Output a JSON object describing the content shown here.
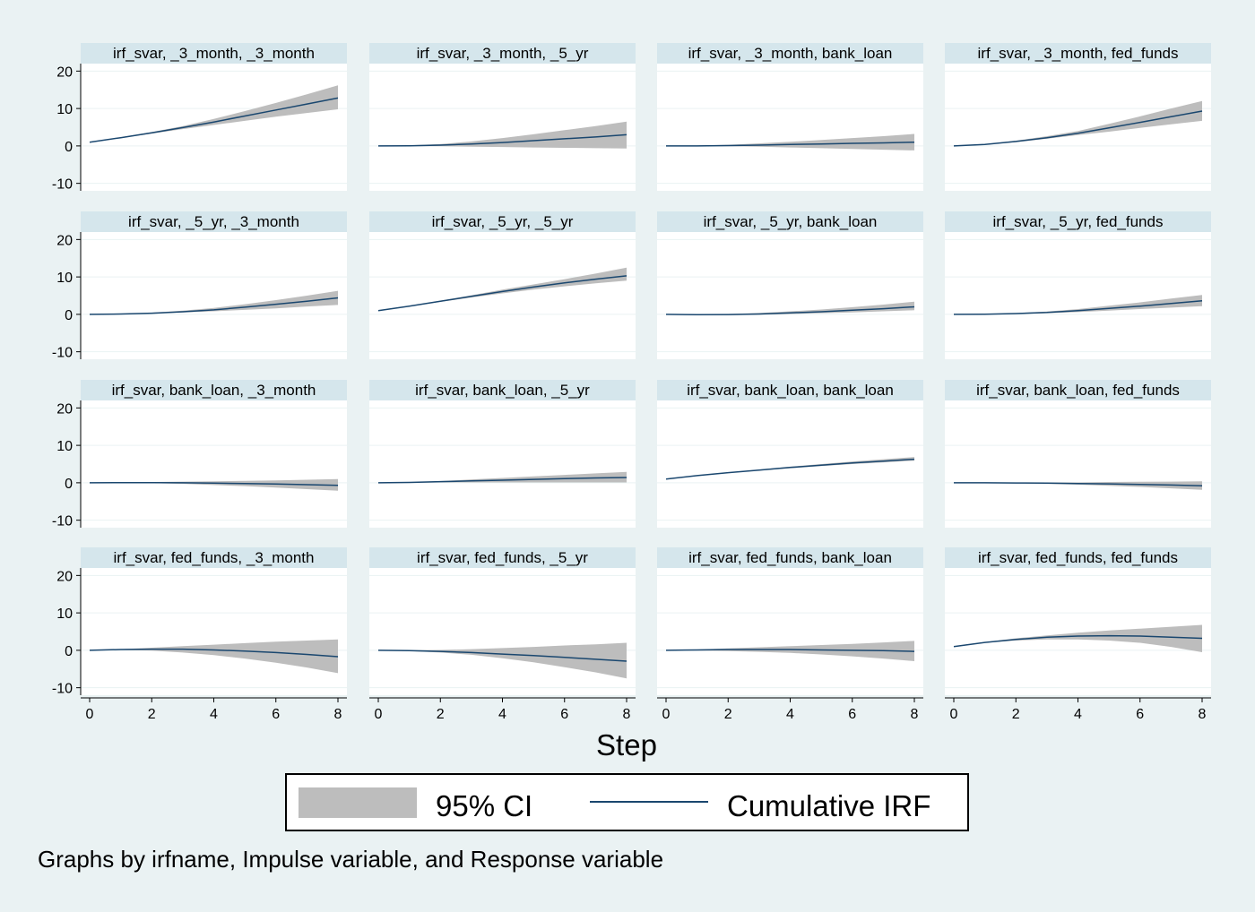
{
  "chart_data": {
    "type": "line",
    "layout": "4x4 small multiples",
    "xlabel": "Step",
    "x": [
      0,
      1,
      2,
      3,
      4,
      5,
      6,
      7,
      8
    ],
    "xticks": [
      0,
      2,
      4,
      6,
      8
    ],
    "xlim": [
      0,
      8
    ],
    "yticks": [
      20,
      10,
      0,
      -10
    ],
    "ylim": [
      -12,
      22
    ],
    "legend": {
      "placement": "bottom",
      "entries": [
        {
          "key": "ci",
          "label": "95% CI"
        },
        {
          "key": "irf",
          "label": "Cumulative IRF"
        }
      ]
    },
    "note": "Graphs by irfname, Impulse variable, and Response variable",
    "colors": {
      "ci": "#bdbdbd",
      "irf": "#1a476f",
      "strip": "#d5e6ec",
      "plot": "#ffffff",
      "background": "#eaf2f3"
    },
    "panels": [
      {
        "title": "irf_svar, _3_month, _3_month",
        "irf": [
          1.0,
          2.2,
          3.5,
          4.9,
          6.4,
          8.0,
          9.6,
          11.2,
          12.8
        ],
        "lower": [
          1.0,
          2.1,
          3.3,
          4.5,
          5.6,
          6.7,
          7.8,
          8.8,
          9.8
        ],
        "upper": [
          1.0,
          2.3,
          3.7,
          5.3,
          7.2,
          9.3,
          11.5,
          13.8,
          16.2
        ]
      },
      {
        "title": "irf_svar, _3_month, _5_yr",
        "irf": [
          0.0,
          0.05,
          0.2,
          0.5,
          0.9,
          1.4,
          1.9,
          2.4,
          3.0
        ],
        "lower": [
          0.0,
          -0.05,
          -0.1,
          -0.2,
          -0.3,
          -0.4,
          -0.5,
          -0.6,
          -0.7
        ],
        "upper": [
          0.0,
          0.15,
          0.5,
          1.2,
          2.1,
          3.1,
          4.2,
          5.3,
          6.5
        ]
      },
      {
        "title": "irf_svar, _3_month, bank_loan",
        "irf": [
          0.0,
          0.0,
          0.1,
          0.2,
          0.4,
          0.5,
          0.7,
          0.8,
          1.0
        ],
        "lower": [
          0.0,
          -0.05,
          -0.1,
          -0.2,
          -0.4,
          -0.6,
          -0.8,
          -1.0,
          -1.2
        ],
        "upper": [
          0.0,
          0.1,
          0.3,
          0.7,
          1.1,
          1.6,
          2.1,
          2.6,
          3.2
        ]
      },
      {
        "title": "irf_svar, _3_month, fed_funds",
        "irf": [
          0.0,
          0.4,
          1.2,
          2.2,
          3.4,
          4.8,
          6.3,
          7.8,
          9.3
        ],
        "lower": [
          0.0,
          0.35,
          1.0,
          1.9,
          2.9,
          3.8,
          4.8,
          5.8,
          6.7
        ],
        "upper": [
          0.0,
          0.45,
          1.4,
          2.6,
          4.0,
          5.9,
          7.9,
          10.0,
          12.0
        ]
      },
      {
        "title": "irf_svar, _5_yr, _3_month",
        "irf": [
          0.0,
          0.1,
          0.3,
          0.7,
          1.2,
          1.9,
          2.7,
          3.5,
          4.4
        ],
        "lower": [
          0.0,
          0.05,
          0.2,
          0.5,
          0.8,
          1.2,
          1.6,
          2.1,
          2.5
        ],
        "upper": [
          0.0,
          0.15,
          0.45,
          1.0,
          1.7,
          2.7,
          3.8,
          5.0,
          6.3
        ]
      },
      {
        "title": "irf_svar, _5_yr, _5_yr",
        "irf": [
          1.0,
          2.2,
          3.5,
          4.8,
          6.1,
          7.3,
          8.4,
          9.4,
          10.3
        ],
        "lower": [
          1.0,
          2.15,
          3.35,
          4.5,
          5.6,
          6.6,
          7.5,
          8.3,
          9.0
        ],
        "upper": [
          1.0,
          2.25,
          3.65,
          5.1,
          6.6,
          8.0,
          9.4,
          10.9,
          12.5
        ]
      },
      {
        "title": "irf_svar, _5_yr, bank_loan",
        "irf": [
          0.0,
          -0.1,
          -0.05,
          0.1,
          0.4,
          0.7,
          1.1,
          1.5,
          2.0
        ],
        "lower": [
          0.0,
          -0.15,
          -0.2,
          -0.1,
          0.1,
          0.3,
          0.5,
          0.8,
          1.1
        ],
        "upper": [
          0.0,
          -0.05,
          0.1,
          0.35,
          0.8,
          1.3,
          1.9,
          2.6,
          3.4
        ]
      },
      {
        "title": "irf_svar, _5_yr, fed_funds",
        "irf": [
          0.0,
          0.05,
          0.2,
          0.5,
          1.0,
          1.6,
          2.2,
          2.9,
          3.6
        ],
        "lower": [
          0.0,
          0.03,
          0.1,
          0.3,
          0.6,
          1.0,
          1.4,
          1.8,
          2.2
        ],
        "upper": [
          0.0,
          0.08,
          0.3,
          0.75,
          1.4,
          2.3,
          3.2,
          4.2,
          5.2
        ]
      },
      {
        "title": "irf_svar, bank_loan, _3_month",
        "irf": [
          0.0,
          0.05,
          0.05,
          0.0,
          -0.1,
          -0.2,
          -0.35,
          -0.5,
          -0.7
        ],
        "lower": [
          0.0,
          0.0,
          -0.1,
          -0.3,
          -0.6,
          -0.9,
          -1.3,
          -1.7,
          -2.1
        ],
        "upper": [
          0.0,
          0.1,
          0.2,
          0.3,
          0.4,
          0.5,
          0.65,
          0.8,
          1.0
        ]
      },
      {
        "title": "irf_svar, bank_loan, _5_yr",
        "irf": [
          0.0,
          0.1,
          0.3,
          0.5,
          0.7,
          0.9,
          1.1,
          1.3,
          1.4
        ],
        "lower": [
          0.0,
          0.05,
          0.1,
          0.1,
          0.1,
          0.1,
          0.1,
          0.1,
          0.1
        ],
        "upper": [
          0.0,
          0.15,
          0.45,
          0.9,
          1.3,
          1.7,
          2.1,
          2.5,
          2.9
        ]
      },
      {
        "title": "irf_svar, bank_loan, bank_loan",
        "irf": [
          1.0,
          1.9,
          2.7,
          3.4,
          4.1,
          4.7,
          5.3,
          5.8,
          6.3
        ],
        "lower": [
          1.0,
          1.85,
          2.6,
          3.25,
          3.9,
          4.45,
          5.0,
          5.45,
          5.9
        ],
        "upper": [
          1.0,
          1.95,
          2.8,
          3.55,
          4.3,
          5.0,
          5.7,
          6.3,
          6.9
        ]
      },
      {
        "title": "irf_svar, bank_loan, fed_funds",
        "irf": [
          0.0,
          0.0,
          -0.05,
          -0.1,
          -0.2,
          -0.3,
          -0.45,
          -0.6,
          -0.8
        ],
        "lower": [
          0.0,
          -0.05,
          -0.15,
          -0.3,
          -0.5,
          -0.8,
          -1.1,
          -1.5,
          -1.9
        ],
        "upper": [
          0.0,
          0.05,
          0.05,
          0.1,
          0.1,
          0.2,
          0.25,
          0.3,
          0.4
        ]
      },
      {
        "title": "irf_svar, fed_funds, _3_month",
        "irf": [
          0.0,
          0.2,
          0.3,
          0.3,
          0.1,
          -0.2,
          -0.6,
          -1.1,
          -1.7
        ],
        "lower": [
          0.0,
          0.1,
          -0.1,
          -0.6,
          -1.3,
          -2.2,
          -3.3,
          -4.6,
          -6.1
        ],
        "upper": [
          0.0,
          0.3,
          0.7,
          1.1,
          1.5,
          1.9,
          2.3,
          2.6,
          2.9
        ]
      },
      {
        "title": "irf_svar, fed_funds, _5_yr",
        "irf": [
          0.0,
          -0.1,
          -0.3,
          -0.6,
          -1.0,
          -1.4,
          -1.9,
          -2.4,
          -2.9
        ],
        "lower": [
          0.0,
          -0.2,
          -0.6,
          -1.2,
          -2.1,
          -3.2,
          -4.5,
          -5.9,
          -7.5
        ],
        "upper": [
          0.0,
          0.0,
          0.1,
          0.3,
          0.6,
          0.9,
          1.3,
          1.6,
          2.0
        ]
      },
      {
        "title": "irf_svar, fed_funds, bank_loan",
        "irf": [
          0.0,
          0.1,
          0.2,
          0.2,
          0.2,
          0.1,
          0.0,
          -0.1,
          -0.3
        ],
        "lower": [
          0.0,
          -0.05,
          -0.2,
          -0.4,
          -0.7,
          -1.1,
          -1.6,
          -2.2,
          -2.9
        ],
        "upper": [
          0.0,
          0.2,
          0.5,
          0.8,
          1.1,
          1.4,
          1.7,
          2.1,
          2.5
        ]
      },
      {
        "title": "irf_svar, fed_funds, fed_funds",
        "irf": [
          1.0,
          2.1,
          2.9,
          3.5,
          3.8,
          3.9,
          3.8,
          3.5,
          3.2
        ],
        "lower": [
          1.0,
          2.0,
          2.6,
          2.9,
          2.9,
          2.6,
          2.0,
          0.9,
          -0.5
        ],
        "upper": [
          1.0,
          2.2,
          3.2,
          4.0,
          4.7,
          5.3,
          5.8,
          6.3,
          6.8
        ]
      }
    ]
  }
}
